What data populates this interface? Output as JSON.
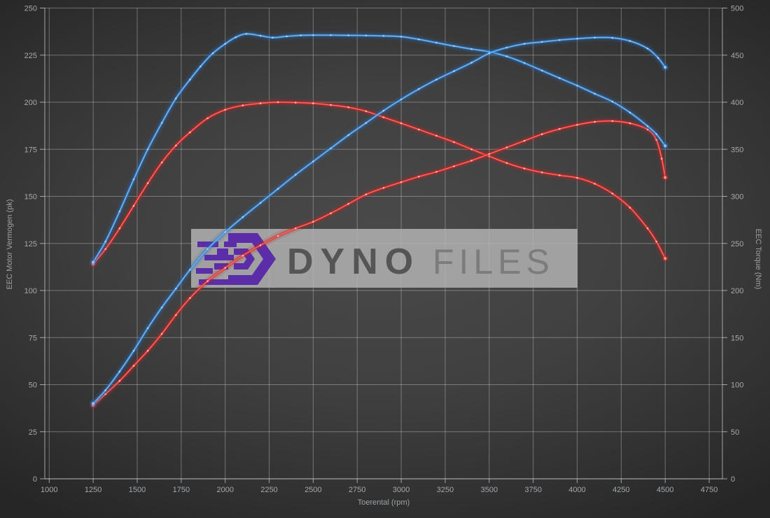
{
  "watermark": {
    "brand_bold": "DYNO",
    "brand_light": "FILES",
    "bg_color": "#b6b6b6",
    "bg_opacity": "0.82",
    "logo_color": "#5b2da8",
    "bold_color": "#555555",
    "light_color": "#7c7c7c"
  },
  "axes": {
    "x": {
      "label": "Toerental (rpm)",
      "min": 1000,
      "max": 4750,
      "step": 250,
      "ticks": [
        1000,
        1250,
        1500,
        1750,
        2000,
        2250,
        2500,
        2750,
        3000,
        3250,
        3500,
        3750,
        4000,
        4250,
        4500,
        4750
      ]
    },
    "y_left": {
      "label": "EEC Motor Vermogen (pk)",
      "min": 0,
      "max": 250,
      "step": 25,
      "ticks": [
        0,
        25,
        50,
        75,
        100,
        125,
        150,
        175,
        200,
        225,
        250
      ]
    },
    "y_right": {
      "label": "EEC Torque (Nm)",
      "min": 0,
      "max": 500,
      "step": 50,
      "ticks": [
        0,
        50,
        100,
        150,
        200,
        250,
        300,
        350,
        400,
        450,
        500
      ]
    }
  },
  "style_colors": {
    "grid": "rgba(215,218,220,0.38)",
    "axis_line": "rgba(225,228,230,0.65)",
    "tick_text": "#a4a8ab",
    "blue_core": "#4f97dd",
    "red_core": "#e63939"
  },
  "chart_data": {
    "type": "line",
    "title": "",
    "xlabel": "Toerental (rpm)",
    "ylabel_left": "EEC Motor Vermogen (pk)",
    "ylabel_right": "EEC Torque (Nm)",
    "x_range": [
      1000,
      4750
    ],
    "y_left_range": [
      0,
      250
    ],
    "y_right_range": [
      0,
      500
    ],
    "grid": true,
    "legend": "none",
    "series": [
      {
        "name": "torque-original",
        "unit": "Nm",
        "axis": "right",
        "color": "#e63939",
        "glow": "#c42525",
        "bright": "#ff8f7f",
        "marker": "#ffc4bb",
        "points": [
          [
            1250,
            228
          ],
          [
            1320,
            244
          ],
          [
            1400,
            266
          ],
          [
            1480,
            290
          ],
          [
            1560,
            314
          ],
          [
            1640,
            336
          ],
          [
            1720,
            354
          ],
          [
            1800,
            368
          ],
          [
            1900,
            383
          ],
          [
            2000,
            392
          ],
          [
            2100,
            396.6
          ],
          [
            2200,
            398.8
          ],
          [
            2300,
            400
          ],
          [
            2400,
            399.6
          ],
          [
            2500,
            398.8
          ],
          [
            2600,
            397
          ],
          [
            2700,
            394.6
          ],
          [
            2800,
            390.4
          ],
          [
            2900,
            384
          ],
          [
            3000,
            377.6
          ],
          [
            3100,
            371
          ],
          [
            3200,
            364.4
          ],
          [
            3300,
            357.6
          ],
          [
            3400,
            350
          ],
          [
            3500,
            342.6
          ],
          [
            3600,
            335.4
          ],
          [
            3700,
            329.6
          ],
          [
            3800,
            325.4
          ],
          [
            3900,
            322.4
          ],
          [
            4000,
            319.6
          ],
          [
            4100,
            313.4
          ],
          [
            4200,
            303
          ],
          [
            4300,
            288
          ],
          [
            4400,
            266
          ],
          [
            4450,
            252
          ],
          [
            4500,
            234
          ]
        ]
      },
      {
        "name": "power-original",
        "unit": "pk",
        "axis": "left",
        "color": "#e63939",
        "glow": "#c42525",
        "bright": "#ff8f7f",
        "marker": "#ffc4bb",
        "points": [
          [
            1250,
            39
          ],
          [
            1320,
            45
          ],
          [
            1400,
            52
          ],
          [
            1480,
            60
          ],
          [
            1560,
            68
          ],
          [
            1640,
            77
          ],
          [
            1720,
            87
          ],
          [
            1800,
            96
          ],
          [
            1900,
            105
          ],
          [
            2000,
            112
          ],
          [
            2100,
            118.5
          ],
          [
            2200,
            124
          ],
          [
            2300,
            129
          ],
          [
            2400,
            133
          ],
          [
            2500,
            136.5
          ],
          [
            2600,
            141
          ],
          [
            2700,
            146
          ],
          [
            2800,
            151
          ],
          [
            2900,
            154.5
          ],
          [
            3000,
            157.5
          ],
          [
            3100,
            160.5
          ],
          [
            3200,
            163
          ],
          [
            3300,
            166
          ],
          [
            3400,
            169
          ],
          [
            3500,
            172.5
          ],
          [
            3600,
            176
          ],
          [
            3700,
            179.5
          ],
          [
            3800,
            183
          ],
          [
            3900,
            185.8
          ],
          [
            4000,
            188
          ],
          [
            4100,
            189.6
          ],
          [
            4200,
            190
          ],
          [
            4300,
            188.8
          ],
          [
            4400,
            185.5
          ],
          [
            4450,
            180
          ],
          [
            4480,
            170
          ],
          [
            4500,
            160
          ]
        ]
      },
      {
        "name": "torque-tuned",
        "unit": "Nm",
        "axis": "right",
        "color": "#4f97dd",
        "glow": "#2470c2",
        "bright": "#8fc2ee",
        "marker": "#aed3f5",
        "points": [
          [
            1250,
            230
          ],
          [
            1320,
            252
          ],
          [
            1400,
            284
          ],
          [
            1480,
            318
          ],
          [
            1560,
            350
          ],
          [
            1640,
            378
          ],
          [
            1720,
            404
          ],
          [
            1800,
            424
          ],
          [
            1860,
            438
          ],
          [
            1930,
            452
          ],
          [
            2000,
            462
          ],
          [
            2060,
            469
          ],
          [
            2120,
            472.6
          ],
          [
            2200,
            470.6
          ],
          [
            2270,
            468.6
          ],
          [
            2350,
            470
          ],
          [
            2430,
            471
          ],
          [
            2500,
            471.2
          ],
          [
            2600,
            471.2
          ],
          [
            2700,
            471
          ],
          [
            2800,
            470.8
          ],
          [
            2900,
            470.4
          ],
          [
            3000,
            469.6
          ],
          [
            3100,
            466.8
          ],
          [
            3200,
            463.2
          ],
          [
            3300,
            459.6
          ],
          [
            3400,
            456.4
          ],
          [
            3500,
            453.6
          ],
          [
            3600,
            448.6
          ],
          [
            3700,
            441.6
          ],
          [
            3800,
            433.6
          ],
          [
            3900,
            425.6
          ],
          [
            4000,
            417.6
          ],
          [
            4100,
            409
          ],
          [
            4200,
            400.6
          ],
          [
            4300,
            389
          ],
          [
            4400,
            374.6
          ],
          [
            4450,
            366
          ],
          [
            4500,
            353.6
          ]
        ]
      },
      {
        "name": "power-tuned",
        "unit": "pk",
        "axis": "left",
        "color": "#4f97dd",
        "glow": "#2470c2",
        "bright": "#8fc2ee",
        "marker": "#aed3f5",
        "points": [
          [
            1250,
            40
          ],
          [
            1320,
            47
          ],
          [
            1400,
            57
          ],
          [
            1480,
            68
          ],
          [
            1560,
            80
          ],
          [
            1640,
            91
          ],
          [
            1720,
            101
          ],
          [
            1800,
            111
          ],
          [
            1900,
            122
          ],
          [
            2000,
            131
          ],
          [
            2100,
            139
          ],
          [
            2200,
            146.5
          ],
          [
            2300,
            154
          ],
          [
            2400,
            161.5
          ],
          [
            2500,
            168.5
          ],
          [
            2600,
            175.5
          ],
          [
            2700,
            182.5
          ],
          [
            2800,
            189
          ],
          [
            2900,
            195.5
          ],
          [
            3000,
            201.5
          ],
          [
            3100,
            207
          ],
          [
            3200,
            212
          ],
          [
            3300,
            216.5
          ],
          [
            3400,
            221
          ],
          [
            3500,
            226
          ],
          [
            3600,
            229
          ],
          [
            3700,
            231
          ],
          [
            3800,
            232
          ],
          [
            3900,
            233
          ],
          [
            4000,
            233.7
          ],
          [
            4100,
            234.3
          ],
          [
            4200,
            234.2
          ],
          [
            4300,
            232.5
          ],
          [
            4400,
            228.5
          ],
          [
            4460,
            223.5
          ],
          [
            4500,
            218.5
          ]
        ]
      }
    ]
  }
}
